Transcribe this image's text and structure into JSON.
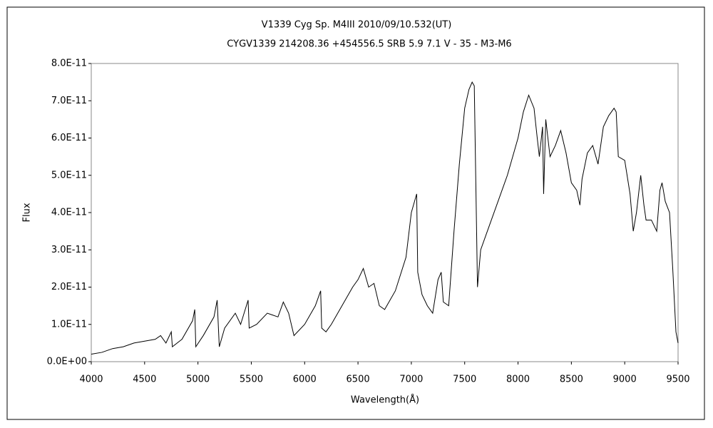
{
  "chart_data": {
    "type": "line",
    "title": "V1339 Cyg    Sp. M4III     2010/09/10.532(UT)",
    "subtitle": "CYGV1339 214208.36 +454556.5 SRB 5.9 7.1 V - 35 - M3-M6",
    "x_label": "Wavelength(Å)",
    "y_label": "Flux",
    "xlim": [
      4000,
      9500
    ],
    "xticks": [
      4000,
      4500,
      5000,
      5500,
      6000,
      6500,
      7000,
      7500,
      8000,
      8500,
      9000,
      9500
    ],
    "ylim": [
      0,
      8e-11
    ],
    "yticks": [
      {
        "value": 0,
        "label": "0.0E+00"
      },
      {
        "value": 1e-11,
        "label": "1.0E-11"
      },
      {
        "value": 2e-11,
        "label": "2.0E-11"
      },
      {
        "value": 3e-11,
        "label": "3.0E-11"
      },
      {
        "value": 4e-11,
        "label": "4.0E-11"
      },
      {
        "value": 5e-11,
        "label": "5.0E-11"
      },
      {
        "value": 6e-11,
        "label": "6.0E-11"
      },
      {
        "value": 7e-11,
        "label": "7.0E-11"
      },
      {
        "value": 8e-11,
        "label": "8.0E-11"
      }
    ],
    "grid": false,
    "series": [
      {
        "color": "#000000",
        "x": [
          4000,
          4100,
          4200,
          4300,
          4400,
          4500,
          4600,
          4650,
          4700,
          4750,
          4760,
          4850,
          4950,
          4970,
          4980,
          5050,
          5150,
          5180,
          5200,
          5250,
          5350,
          5400,
          5470,
          5480,
          5550,
          5650,
          5750,
          5800,
          5850,
          5900,
          6000,
          6100,
          6150,
          6160,
          6200,
          6250,
          6350,
          6450,
          6500,
          6550,
          6600,
          6650,
          6700,
          6750,
          6850,
          6950,
          7000,
          7050,
          7060,
          7100,
          7150,
          7200,
          7250,
          7280,
          7300,
          7350,
          7400,
          7450,
          7500,
          7540,
          7570,
          7590,
          7620,
          7650,
          7700,
          7800,
          7900,
          8000,
          8050,
          8100,
          8150,
          8180,
          8200,
          8230,
          8240,
          8260,
          8300,
          8350,
          8400,
          8450,
          8500,
          8550,
          8580,
          8600,
          8650,
          8700,
          8750,
          8800,
          8850,
          8900,
          8920,
          8940,
          9000,
          9050,
          9080,
          9110,
          9150,
          9180,
          9200,
          9250,
          9300,
          9330,
          9350,
          9380,
          9420,
          9450,
          9480,
          9500
        ],
        "values": [
          2e-12,
          2.5e-12,
          3.5e-12,
          4e-12,
          5e-12,
          5.5e-12,
          6e-12,
          7e-12,
          5e-12,
          8e-12,
          4e-12,
          6e-12,
          1.1e-11,
          1.4e-11,
          4e-12,
          7e-12,
          1.2e-11,
          1.65e-11,
          4e-12,
          9e-12,
          1.3e-11,
          1e-11,
          1.65e-11,
          9e-12,
          1e-11,
          1.3e-11,
          1.2e-11,
          1.6e-11,
          1.3e-11,
          7e-12,
          1e-11,
          1.5e-11,
          1.9e-11,
          9e-12,
          8e-12,
          1e-11,
          1.5e-11,
          2e-11,
          2.2e-11,
          2.5e-11,
          2e-11,
          2.1e-11,
          1.5e-11,
          1.4e-11,
          1.9e-11,
          2.8e-11,
          4e-11,
          4.5e-11,
          2.4e-11,
          1.8e-11,
          1.5e-11,
          1.3e-11,
          2.2e-11,
          2.4e-11,
          1.6e-11,
          1.5e-11,
          3.5e-11,
          5.3e-11,
          6.8e-11,
          7.3e-11,
          7.5e-11,
          7.4e-11,
          2e-11,
          3e-11,
          3.4e-11,
          4.2e-11,
          5e-11,
          6e-11,
          6.7e-11,
          7.15e-11,
          6.8e-11,
          6e-11,
          5.5e-11,
          6.3e-11,
          4.5e-11,
          6.5e-11,
          5.5e-11,
          5.8e-11,
          6.2e-11,
          5.6e-11,
          4.8e-11,
          4.6e-11,
          4.2e-11,
          4.9e-11,
          5.6e-11,
          5.8e-11,
          5.3e-11,
          6.3e-11,
          6.6e-11,
          6.8e-11,
          6.7e-11,
          5.5e-11,
          5.4e-11,
          4.5e-11,
          3.5e-11,
          4e-11,
          5e-11,
          4.2e-11,
          3.8e-11,
          3.8e-11,
          3.5e-11,
          4.6e-11,
          4.8e-11,
          4.3e-11,
          4e-11,
          2.5e-11,
          8e-12,
          5e-12
        ]
      }
    ]
  }
}
